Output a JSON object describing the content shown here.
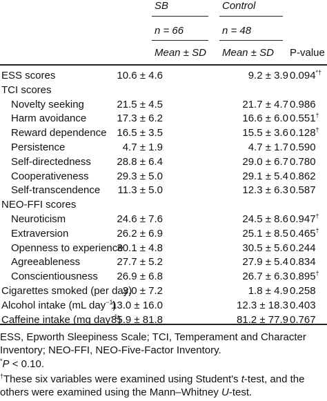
{
  "header": {
    "group1": "SB",
    "group2": "Control",
    "n1": "n = 66",
    "n2": "n = 48",
    "stat1": "Mean ± SD",
    "stat2": "Mean ± SD",
    "pvalue": "P-value"
  },
  "rows": [
    {
      "label": "ESS scores",
      "indent": false,
      "sb": "10.6 ± 4.6",
      "ctrl": "9.2 ± 3.9",
      "p": "0.094",
      "mark": "*†"
    },
    {
      "label": "TCI scores",
      "indent": false,
      "sb": "",
      "ctrl": "",
      "p": "",
      "mark": ""
    },
    {
      "label": "Novelty seeking",
      "indent": true,
      "sb": "21.5 ± 4.5",
      "ctrl": "21.7 ± 4.7",
      "p": "0.986",
      "mark": ""
    },
    {
      "label": "Harm avoidance",
      "indent": true,
      "sb": "17.3 ± 6.2",
      "ctrl": "16.6 ± 6.0",
      "p": "0.551",
      "mark": "†"
    },
    {
      "label": "Reward dependence",
      "indent": true,
      "sb": "16.5 ± 3.5",
      "ctrl": "15.5 ± 3.6",
      "p": "0.128",
      "mark": "†"
    },
    {
      "label": "Persistence",
      "indent": true,
      "sb": "4.7 ± 1.9",
      "ctrl": "4.7 ± 1.7",
      "p": "0.590",
      "mark": ""
    },
    {
      "label": "Self-directedness",
      "indent": true,
      "sb": "28.8 ± 6.4",
      "ctrl": "29.0 ± 6.7",
      "p": "0.780",
      "mark": ""
    },
    {
      "label": "Cooperativeness",
      "indent": true,
      "sb": "29.3 ± 5.0",
      "ctrl": "29.1 ± 5.4",
      "p": "0.862",
      "mark": ""
    },
    {
      "label": "Self-transcendence",
      "indent": true,
      "sb": "11.3 ± 5.0",
      "ctrl": "12.3 ± 6.3",
      "p": "0.587",
      "mark": ""
    },
    {
      "label": "NEO-FFI scores",
      "indent": false,
      "sb": "",
      "ctrl": "",
      "p": "",
      "mark": ""
    },
    {
      "label": "Neuroticism",
      "indent": true,
      "sb": "24.6 ± 7.6",
      "ctrl": "24.5 ± 8.6",
      "p": "0.947",
      "mark": "†"
    },
    {
      "label": "Extraversion",
      "indent": true,
      "sb": "26.2 ± 6.9",
      "ctrl": "25.1 ± 8.5",
      "p": "0.465",
      "mark": "†"
    },
    {
      "label": "Openness to experience",
      "indent": true,
      "sb": "30.1 ± 4.8",
      "ctrl": "30.5 ± 5.6",
      "p": "0.244",
      "mark": ""
    },
    {
      "label": "Agreeableness",
      "indent": true,
      "sb": "27.7 ± 5.2",
      "ctrl": "27.9 ± 5.4",
      "p": "0.834",
      "mark": ""
    },
    {
      "label": "Conscientiousness",
      "indent": true,
      "sb": "26.9 ± 6.8",
      "ctrl": "26.7 ± 6.3",
      "p": "0.895",
      "mark": "†"
    },
    {
      "label": "Cigarettes smoked (per day)",
      "indent": false,
      "sb": "3.0 ± 7.2",
      "ctrl": "1.8 ± 4.9",
      "p": "0.258",
      "mark": ""
    },
    {
      "label": "Alcohol intake (mL day",
      "labelSup": "−1",
      "labelEnd": ")",
      "indent": false,
      "sb": "13.0 ± 16.0",
      "ctrl": "12.3 ± 18.3",
      "p": "0.403",
      "mark": ""
    },
    {
      "label": "Caffeine intake (mg day",
      "labelSup": "−1",
      "labelEnd": ")",
      "indent": false,
      "sb": "85.9 ± 81.8",
      "ctrl": "81.2 ± 77.9",
      "p": "0.767",
      "mark": ""
    }
  ],
  "footnotes": {
    "abbrev_line1": "ESS, Epworth Sleepiness Scale; TCI, Temperament and Character",
    "abbrev_line2": "Inventory; NEO-FFI, NEO-Five-Factor Inventory.",
    "sig_mark": "*",
    "sig_italic": "P",
    "sig_text": " < 0.10.",
    "dagger_mark": "†",
    "dagger_line1a": "These six variables were examined using Student's ",
    "dagger_line1b": "t",
    "dagger_line1c": "-test, and the",
    "dagger_line2a": "others were examined using the Mann–Whitney ",
    "dagger_line2b": "U",
    "dagger_line2c": "-test."
  }
}
